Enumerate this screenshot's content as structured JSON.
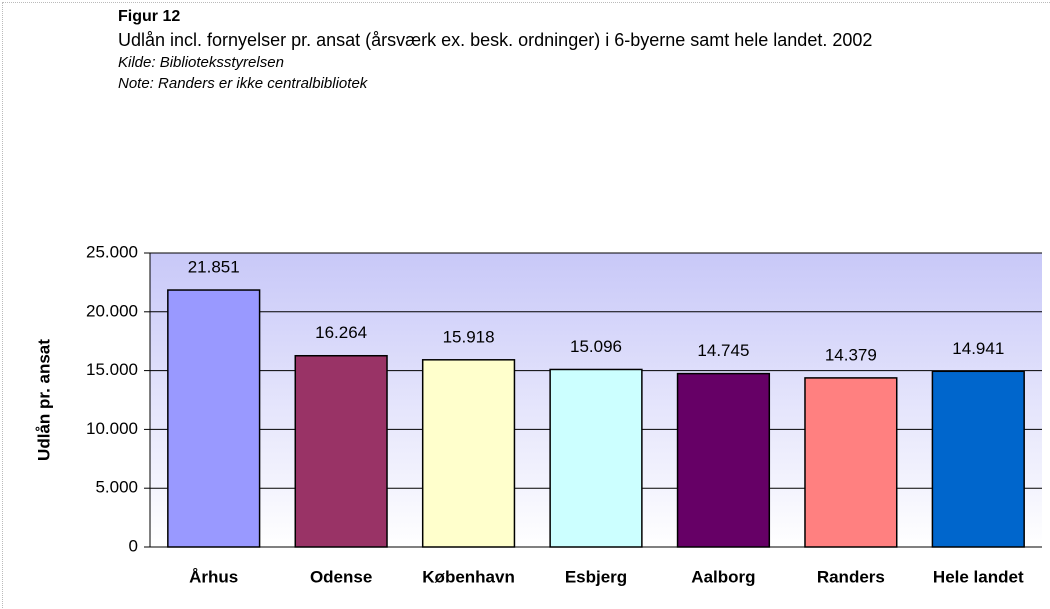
{
  "chart_data": {
    "type": "bar",
    "title": "Figur 12",
    "subtitle": "Udlån incl. fornyelser pr. ansat (årsværk ex. besk. ordninger) i 6-byerne samt hele landet. 2002",
    "source": "Kilde: Biblioteksstyrelsen",
    "note": "Note: Randers er ikke centralbibliotek",
    "y_label": "Udlån pr. ansat",
    "categories": [
      "Århus",
      "Odense",
      "København",
      "Esbjerg",
      "Aalborg",
      "Randers",
      "Hele landet"
    ],
    "values": [
      21851,
      16264,
      15918,
      15096,
      14745,
      14379,
      14941
    ],
    "value_labels": [
      "21.851",
      "16.264",
      "15.918",
      "15.096",
      "14.745",
      "14.379",
      "14.941"
    ],
    "colors": [
      "#9999ff",
      "#993366",
      "#ffffcc",
      "#ccffff",
      "#660066",
      "#ff8080",
      "#0066cc"
    ],
    "ylim": [
      0,
      25000
    ],
    "yticks": [
      0,
      {
        "value": 5000,
        "label": "5.000"
      },
      {
        "value": 10000,
        "label": "10.000"
      },
      {
        "value": 15000,
        "label": "15.000"
      },
      {
        "value": 20000,
        "label": "20.000"
      },
      {
        "value": 25000,
        "label": "25.000"
      }
    ],
    "grid": true
  }
}
